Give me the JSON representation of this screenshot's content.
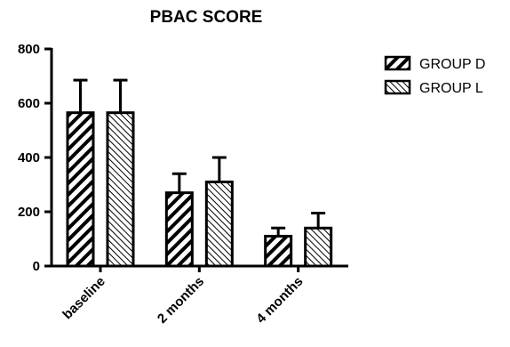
{
  "chart_data": {
    "type": "bar",
    "title": "PBAC SCORE",
    "xlabel": "",
    "ylabel": "",
    "categories": [
      "baseline",
      "2 months",
      "4 months"
    ],
    "series": [
      {
        "name": "GROUP D",
        "values": [
          565,
          270,
          110
        ],
        "error": [
          120,
          70,
          30
        ],
        "pattern": "hatch-dense"
      },
      {
        "name": "GROUP L",
        "values": [
          565,
          310,
          140
        ],
        "error": [
          120,
          90,
          55
        ],
        "pattern": "hatch-light"
      }
    ],
    "ylim": [
      0,
      800
    ],
    "yticks": [
      0,
      200,
      400,
      600,
      800
    ],
    "grid": false,
    "legend_position": "top-right",
    "colors": {
      "stroke": "#000000",
      "background": "#ffffff"
    }
  }
}
